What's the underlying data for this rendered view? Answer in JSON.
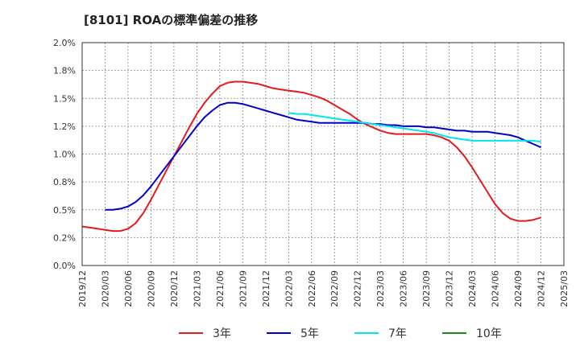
{
  "chart_data": {
    "type": "line",
    "title": "[8101]  ROAの標準偏差の推移",
    "xlabel": "",
    "ylabel": "",
    "ylim": [
      0,
      0.02
    ],
    "y_ticks": [
      "0.0%",
      "0.2%",
      "0.5%",
      "0.8%",
      "1.0%",
      "1.2%",
      "1.5%",
      "1.8%",
      "2.0%"
    ],
    "x_ticks": [
      "2019/12",
      "2020/03",
      "2020/06",
      "2020/09",
      "2020/12",
      "2021/03",
      "2021/06",
      "2021/09",
      "2021/12",
      "2022/03",
      "2022/06",
      "2022/09",
      "2022/12",
      "2023/03",
      "2023/06",
      "2023/09",
      "2023/12",
      "2024/03",
      "2024/06",
      "2024/09",
      "2024/12",
      "2025/03"
    ],
    "grid": true,
    "legend_position": "bottom",
    "series": [
      {
        "name": "3年",
        "color": "#e41a1c",
        "points": [
          [
            "2019/12",
            0.0035
          ],
          [
            "2020/01",
            0.0034
          ],
          [
            "2020/02",
            0.0033
          ],
          [
            "2020/03",
            0.0032
          ],
          [
            "2020/04",
            0.0031
          ],
          [
            "2020/05",
            0.0031
          ],
          [
            "2020/06",
            0.0033
          ],
          [
            "2020/07",
            0.0038
          ],
          [
            "2020/08",
            0.0047
          ],
          [
            "2020/09",
            0.0059
          ],
          [
            "2020/10",
            0.0072
          ],
          [
            "2020/11",
            0.0085
          ],
          [
            "2020/12",
            0.0098
          ],
          [
            "2021/01",
            0.0111
          ],
          [
            "2021/02",
            0.0124
          ],
          [
            "2021/03",
            0.0136
          ],
          [
            "2021/04",
            0.0146
          ],
          [
            "2021/05",
            0.0154
          ],
          [
            "2021/06",
            0.0161
          ],
          [
            "2021/07",
            0.0164
          ],
          [
            "2021/08",
            0.0165
          ],
          [
            "2021/09",
            0.0165
          ],
          [
            "2021/10",
            0.0164
          ],
          [
            "2021/11",
            0.0163
          ],
          [
            "2021/12",
            0.0161
          ],
          [
            "2022/01",
            0.0159
          ],
          [
            "2022/02",
            0.0158
          ],
          [
            "2022/03",
            0.0157
          ],
          [
            "2022/04",
            0.0156
          ],
          [
            "2022/05",
            0.0155
          ],
          [
            "2022/06",
            0.0153
          ],
          [
            "2022/07",
            0.0151
          ],
          [
            "2022/08",
            0.0148
          ],
          [
            "2022/09",
            0.0144
          ],
          [
            "2022/10",
            0.014
          ],
          [
            "2022/11",
            0.0136
          ],
          [
            "2022/12",
            0.0131
          ],
          [
            "2023/01",
            0.0127
          ],
          [
            "2023/02",
            0.0124
          ],
          [
            "2023/03",
            0.0121
          ],
          [
            "2023/04",
            0.0119
          ],
          [
            "2023/05",
            0.0118
          ],
          [
            "2023/06",
            0.0118
          ],
          [
            "2023/07",
            0.0118
          ],
          [
            "2023/08",
            0.0118
          ],
          [
            "2023/09",
            0.0118
          ],
          [
            "2023/10",
            0.0117
          ],
          [
            "2023/11",
            0.0115
          ],
          [
            "2023/12",
            0.0112
          ],
          [
            "2024/01",
            0.0106
          ],
          [
            "2024/02",
            0.0098
          ],
          [
            "2024/03",
            0.0088
          ],
          [
            "2024/04",
            0.0077
          ],
          [
            "2024/05",
            0.0066
          ],
          [
            "2024/06",
            0.0055
          ],
          [
            "2024/07",
            0.0047
          ],
          [
            "2024/08",
            0.0042
          ],
          [
            "2024/09",
            0.004
          ],
          [
            "2024/10",
            0.004
          ],
          [
            "2024/11",
            0.0041
          ],
          [
            "2024/12",
            0.0043
          ]
        ]
      },
      {
        "name": "5年",
        "color": "#0000cc",
        "points": [
          [
            "2020/03",
            0.005
          ],
          [
            "2020/04",
            0.005
          ],
          [
            "2020/05",
            0.0051
          ],
          [
            "2020/06",
            0.0053
          ],
          [
            "2020/07",
            0.0057
          ],
          [
            "2020/08",
            0.0063
          ],
          [
            "2020/09",
            0.0071
          ],
          [
            "2020/10",
            0.008
          ],
          [
            "2020/11",
            0.0089
          ],
          [
            "2020/12",
            0.0098
          ],
          [
            "2021/01",
            0.0107
          ],
          [
            "2021/02",
            0.0116
          ],
          [
            "2021/03",
            0.0125
          ],
          [
            "2021/04",
            0.0133
          ],
          [
            "2021/05",
            0.0139
          ],
          [
            "2021/06",
            0.0144
          ],
          [
            "2021/07",
            0.0146
          ],
          [
            "2021/08",
            0.0146
          ],
          [
            "2021/09",
            0.0145
          ],
          [
            "2021/10",
            0.0143
          ],
          [
            "2021/11",
            0.0141
          ],
          [
            "2021/12",
            0.0139
          ],
          [
            "2022/01",
            0.0137
          ],
          [
            "2022/02",
            0.0135
          ],
          [
            "2022/03",
            0.0133
          ],
          [
            "2022/04",
            0.0131
          ],
          [
            "2022/05",
            0.013
          ],
          [
            "2022/06",
            0.0129
          ],
          [
            "2022/07",
            0.0128
          ],
          [
            "2022/08",
            0.0128
          ],
          [
            "2022/09",
            0.0128
          ],
          [
            "2022/10",
            0.0128
          ],
          [
            "2022/11",
            0.0128
          ],
          [
            "2022/12",
            0.0128
          ],
          [
            "2023/01",
            0.0128
          ],
          [
            "2023/02",
            0.0127
          ],
          [
            "2023/03",
            0.0127
          ],
          [
            "2023/04",
            0.0126
          ],
          [
            "2023/05",
            0.0126
          ],
          [
            "2023/06",
            0.0125
          ],
          [
            "2023/07",
            0.0125
          ],
          [
            "2023/08",
            0.0125
          ],
          [
            "2023/09",
            0.0124
          ],
          [
            "2023/10",
            0.0124
          ],
          [
            "2023/11",
            0.0123
          ],
          [
            "2023/12",
            0.0122
          ],
          [
            "2024/01",
            0.0121
          ],
          [
            "2024/02",
            0.0121
          ],
          [
            "2024/03",
            0.012
          ],
          [
            "2024/04",
            0.012
          ],
          [
            "2024/05",
            0.012
          ],
          [
            "2024/06",
            0.0119
          ],
          [
            "2024/07",
            0.0118
          ],
          [
            "2024/08",
            0.0117
          ],
          [
            "2024/09",
            0.0115
          ],
          [
            "2024/10",
            0.0112
          ],
          [
            "2024/11",
            0.0109
          ],
          [
            "2024/12",
            0.0106
          ]
        ]
      },
      {
        "name": "7年",
        "color": "#00e5ee",
        "points": [
          [
            "2022/03",
            0.0137
          ],
          [
            "2022/04",
            0.0136
          ],
          [
            "2022/05",
            0.0136
          ],
          [
            "2022/06",
            0.0135
          ],
          [
            "2022/07",
            0.0134
          ],
          [
            "2022/08",
            0.0133
          ],
          [
            "2022/09",
            0.0132
          ],
          [
            "2022/10",
            0.0131
          ],
          [
            "2022/11",
            0.013
          ],
          [
            "2022/12",
            0.0129
          ],
          [
            "2023/01",
            0.0128
          ],
          [
            "2023/02",
            0.0127
          ],
          [
            "2023/03",
            0.0126
          ],
          [
            "2023/04",
            0.0125
          ],
          [
            "2023/05",
            0.0124
          ],
          [
            "2023/06",
            0.0123
          ],
          [
            "2023/07",
            0.0122
          ],
          [
            "2023/08",
            0.0121
          ],
          [
            "2023/09",
            0.012
          ],
          [
            "2023/10",
            0.0119
          ],
          [
            "2023/11",
            0.0117
          ],
          [
            "2023/12",
            0.0115
          ],
          [
            "2024/01",
            0.0114
          ],
          [
            "2024/02",
            0.0113
          ],
          [
            "2024/03",
            0.0112
          ],
          [
            "2024/04",
            0.0112
          ],
          [
            "2024/05",
            0.0112
          ],
          [
            "2024/06",
            0.0112
          ],
          [
            "2024/07",
            0.0112
          ],
          [
            "2024/08",
            0.0112
          ],
          [
            "2024/09",
            0.0112
          ],
          [
            "2024/10",
            0.0112
          ],
          [
            "2024/11",
            0.0112
          ],
          [
            "2024/12",
            0.0111
          ]
        ]
      },
      {
        "name": "10年",
        "color": "#1a8a1a",
        "points": []
      }
    ]
  }
}
